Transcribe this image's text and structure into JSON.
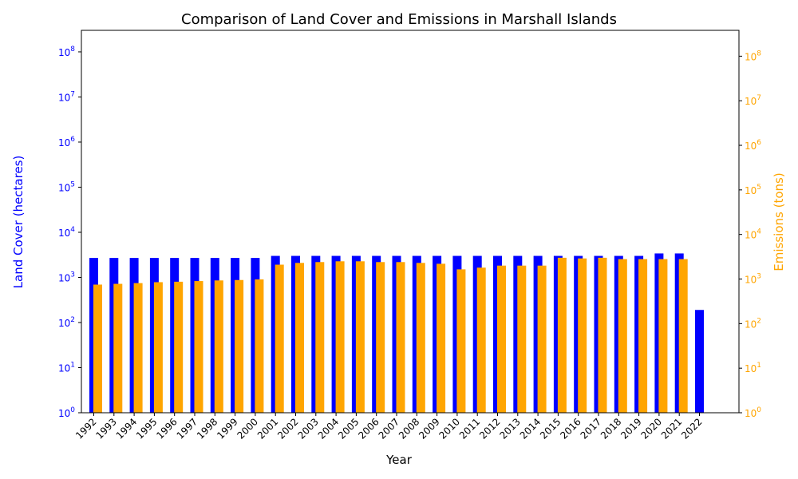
{
  "chart_data": {
    "type": "bar",
    "title": "Comparison of Land Cover and Emissions in Marshall Islands",
    "xlabel": "Year",
    "y_left": {
      "label": "Land Cover (hectares)",
      "scale": "log",
      "range": [
        1,
        300000000
      ],
      "color": "#0000ff",
      "ticks": [
        {
          "value": 1,
          "base": "10",
          "exp": "0"
        },
        {
          "value": 10,
          "base": "10",
          "exp": "1"
        },
        {
          "value": 100,
          "base": "10",
          "exp": "2"
        },
        {
          "value": 1000,
          "base": "10",
          "exp": "3"
        },
        {
          "value": 10000,
          "base": "10",
          "exp": "4"
        },
        {
          "value": 100000,
          "base": "10",
          "exp": "5"
        },
        {
          "value": 1000000,
          "base": "10",
          "exp": "6"
        },
        {
          "value": 10000000,
          "base": "10",
          "exp": "7"
        },
        {
          "value": 100000000,
          "base": "10",
          "exp": "8"
        }
      ]
    },
    "y_right": {
      "label": "Emissions (tons)",
      "scale": "log",
      "range": [
        1,
        380000000
      ],
      "color": "#ffa500",
      "ticks": [
        {
          "value": 1,
          "base": "10",
          "exp": "0"
        },
        {
          "value": 10,
          "base": "10",
          "exp": "1"
        },
        {
          "value": 100,
          "base": "10",
          "exp": "2"
        },
        {
          "value": 1000,
          "base": "10",
          "exp": "3"
        },
        {
          "value": 10000,
          "base": "10",
          "exp": "4"
        },
        {
          "value": 100000,
          "base": "10",
          "exp": "5"
        },
        {
          "value": 1000000,
          "base": "10",
          "exp": "6"
        },
        {
          "value": 10000000,
          "base": "10",
          "exp": "7"
        },
        {
          "value": 100000000,
          "base": "10",
          "exp": "8"
        }
      ]
    },
    "categories": [
      "1992",
      "1993",
      "1994",
      "1995",
      "1996",
      "1997",
      "1998",
      "1999",
      "2000",
      "2001",
      "2002",
      "2003",
      "2004",
      "2005",
      "2006",
      "2007",
      "2008",
      "2009",
      "2010",
      "2011",
      "2012",
      "2013",
      "2014",
      "2015",
      "2016",
      "2017",
      "2018",
      "2019",
      "2020",
      "2021",
      "2022"
    ],
    "series": [
      {
        "name": "Land Cover",
        "axis": "left",
        "color": "#0000ff",
        "values": [
          2700,
          2700,
          2700,
          2700,
          2700,
          2700,
          2700,
          2700,
          2700,
          3000,
          3000,
          3000,
          3000,
          3000,
          3000,
          3000,
          3000,
          3000,
          3000,
          3000,
          3000,
          3000,
          3000,
          3000,
          3000,
          3000,
          3000,
          3000,
          3400,
          3400,
          190
        ]
      },
      {
        "name": "Emissions",
        "axis": "right",
        "color": "#ffa500",
        "values": [
          750,
          780,
          810,
          850,
          870,
          900,
          930,
          950,
          980,
          2100,
          2300,
          2400,
          2500,
          2500,
          2400,
          2400,
          2300,
          2200,
          1650,
          1800,
          2000,
          2000,
          2000,
          3000,
          2900,
          3000,
          2800,
          2800,
          2800,
          2800,
          null
        ]
      }
    ],
    "grid": false,
    "legend": "none"
  }
}
